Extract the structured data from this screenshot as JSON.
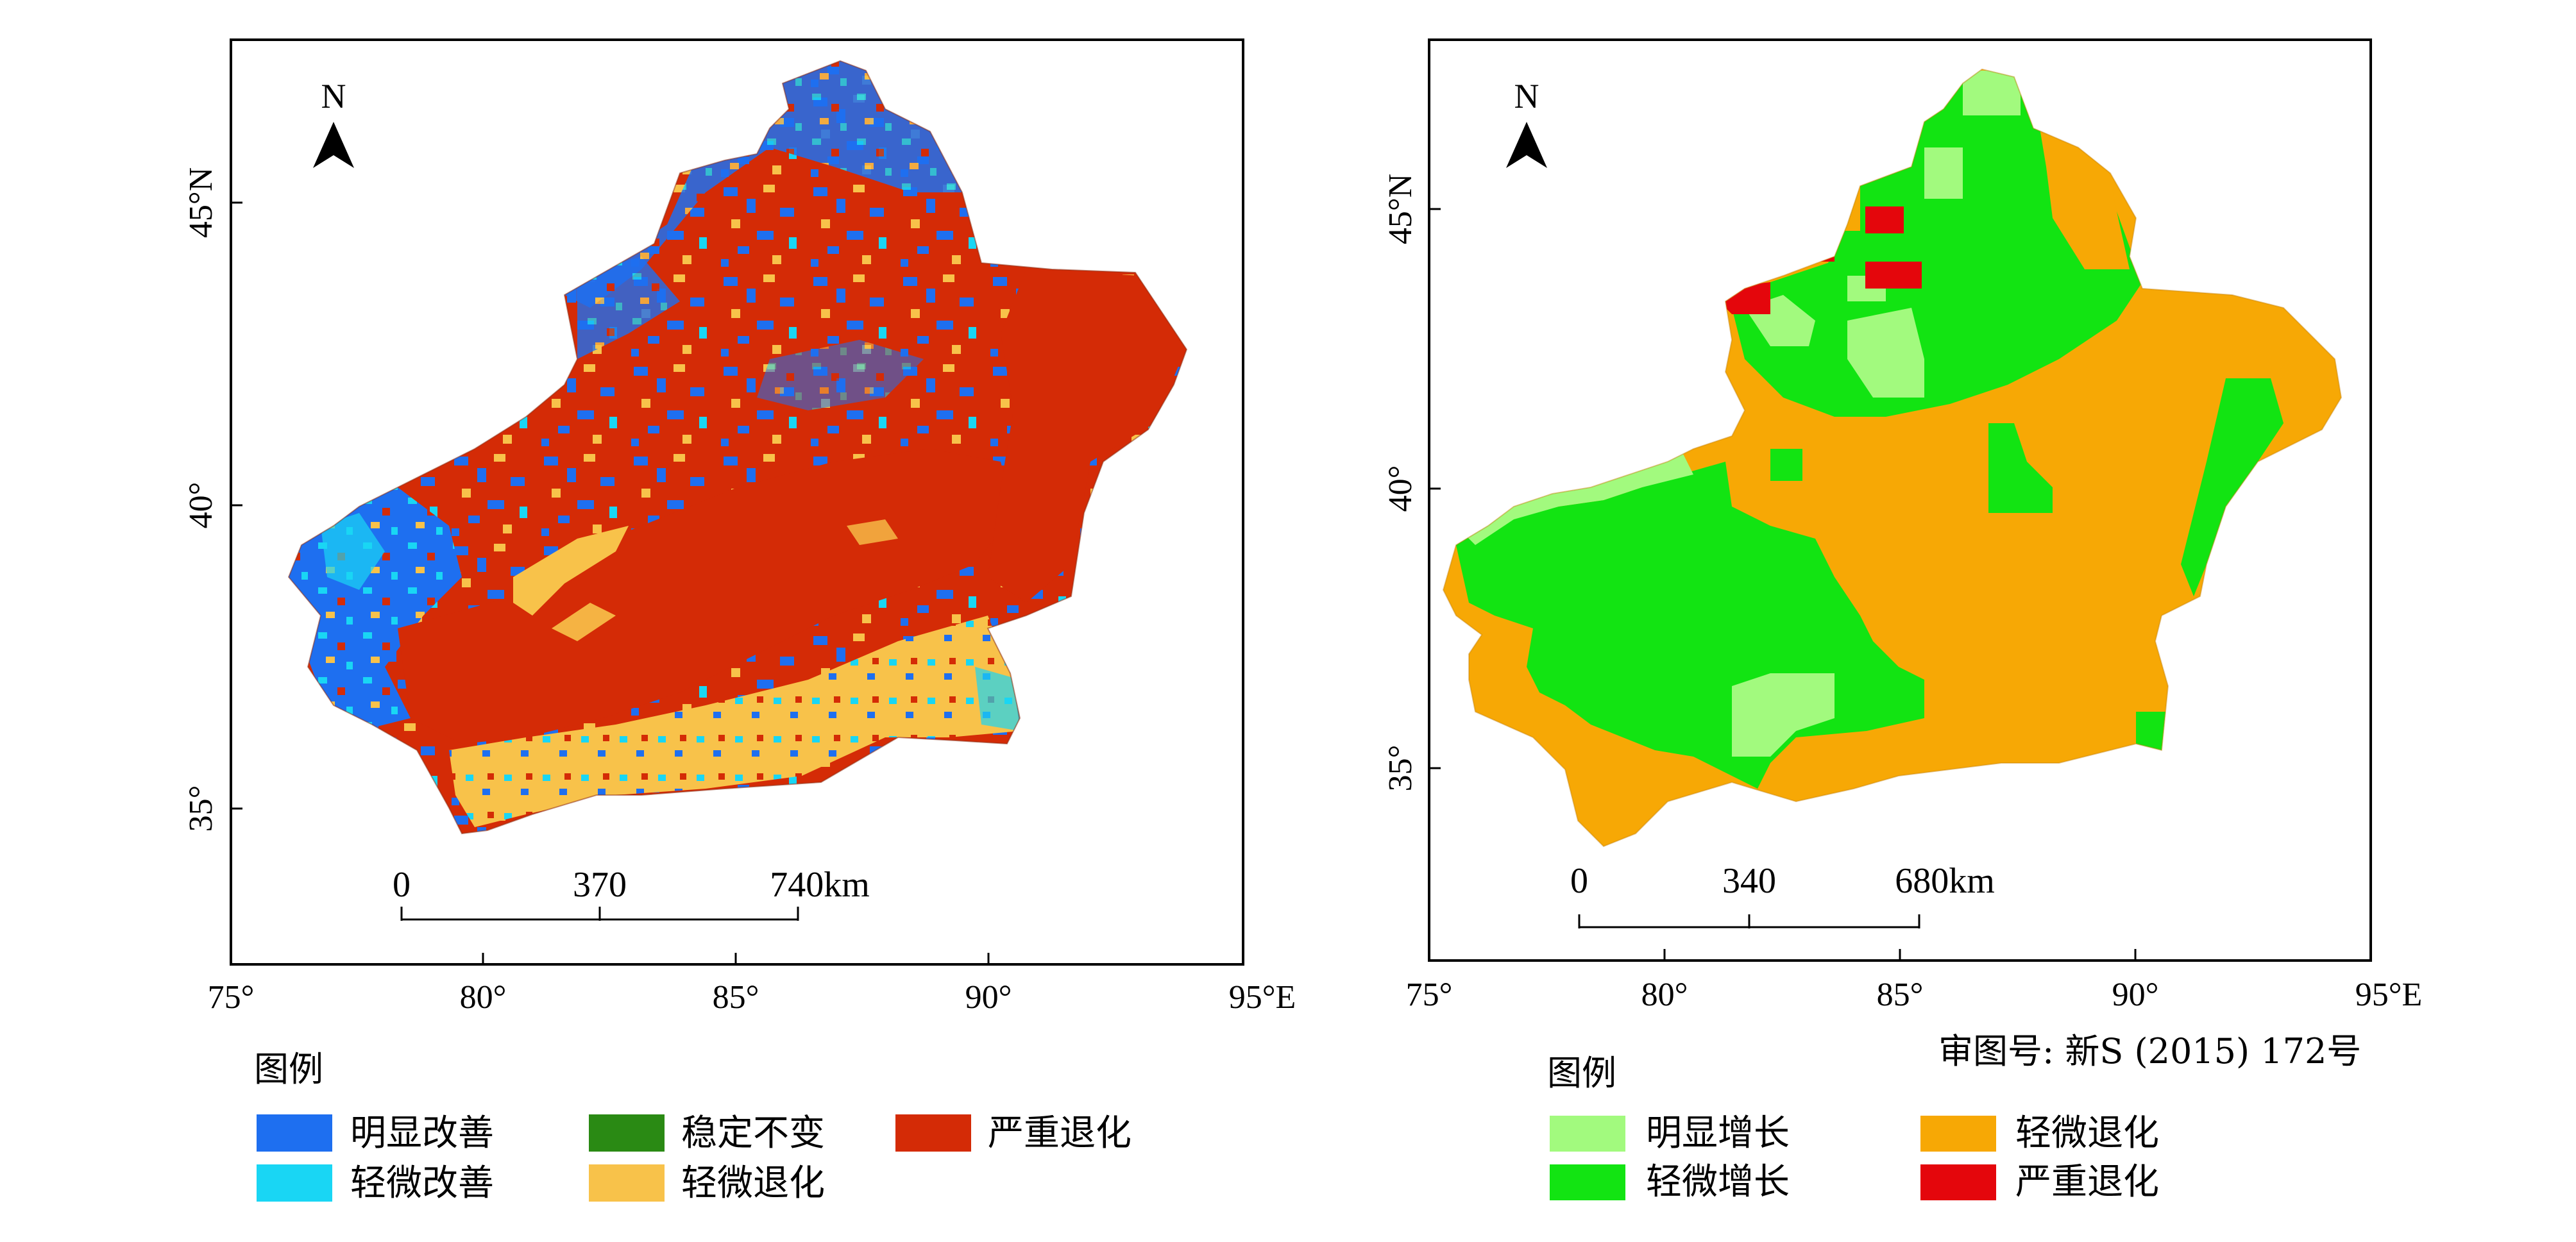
{
  "map_left": {
    "lon_labels": [
      "75°",
      "80°",
      "85°",
      "90°",
      "95°E"
    ],
    "lat_labels": [
      "45°N",
      "40°",
      "35°"
    ],
    "north_label": "N",
    "scale": {
      "ticks": [
        "0",
        "370",
        "740km"
      ]
    },
    "legend": {
      "title": "图例",
      "items": [
        {
          "label": "明显改善",
          "color": "#1e6ff0"
        },
        {
          "label": "稳定不变",
          "color": "#2a8a14"
        },
        {
          "label": "严重退化",
          "color": "#d42b06"
        },
        {
          "label": "轻微改善",
          "color": "#19d6f4"
        },
        {
          "label": "轻微退化",
          "color": "#f8c24a"
        }
      ]
    }
  },
  "map_right": {
    "lon_labels": [
      "75°",
      "80°",
      "85°",
      "90°",
      "95°E"
    ],
    "lat_labels": [
      "45°N",
      "40°",
      "35°"
    ],
    "north_label": "N",
    "scale": {
      "ticks": [
        "0",
        "340",
        "680km"
      ]
    },
    "approval": "审图号: 新S (2015) 172号",
    "legend": {
      "title": "图例",
      "items": [
        {
          "label": "明显增长",
          "color": "#a2fa7e"
        },
        {
          "label": "轻微退化",
          "color": "#f7a805"
        },
        {
          "label": "轻微增长",
          "color": "#12e412"
        },
        {
          "label": "严重退化",
          "color": "#e4060c"
        }
      ]
    }
  }
}
